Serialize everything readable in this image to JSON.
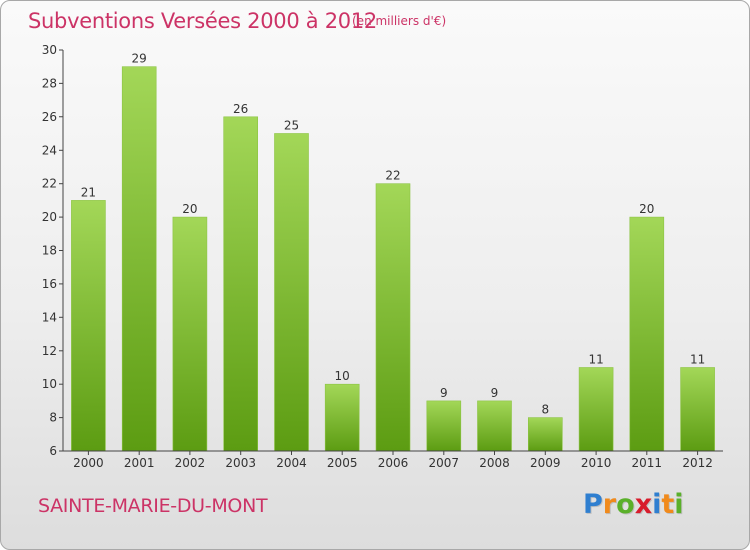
{
  "title": "Subventions Versées 2000 à 2012",
  "units": "(en milliers d'€)",
  "commune": "SAINTE-MARIE-DU-MONT",
  "logo": {
    "letters": [
      "P",
      "r",
      "o",
      "x",
      "i",
      "t",
      "i"
    ],
    "colors": [
      "#2f7fd0",
      "#f08a1c",
      "#5ab02a",
      "#d81c2c",
      "#2f7fd0",
      "#f08a1c",
      "#5ab02a"
    ]
  },
  "colors": {
    "bar_light": "#a3d758",
    "bar_dark": "#5c9c12",
    "accent": "#cc3366"
  },
  "chart_data": {
    "type": "bar",
    "categories": [
      "2000",
      "2001",
      "2002",
      "2003",
      "2004",
      "2005",
      "2006",
      "2007",
      "2008",
      "2009",
      "2010",
      "2011",
      "2012"
    ],
    "values": [
      21,
      29,
      20,
      26,
      25,
      10,
      22,
      9,
      9,
      8,
      11,
      20,
      11
    ],
    "value_labels": [
      "21",
      "29",
      "20",
      "26",
      "25",
      "10",
      "22",
      "9",
      "9",
      "8",
      "11",
      "20",
      "11"
    ],
    "yticks": [
      "6",
      "8",
      "10",
      "12",
      "14",
      "16",
      "18",
      "20",
      "22",
      "24",
      "26",
      "28",
      "30"
    ],
    "ylim": [
      6,
      30
    ],
    "grid": false
  }
}
